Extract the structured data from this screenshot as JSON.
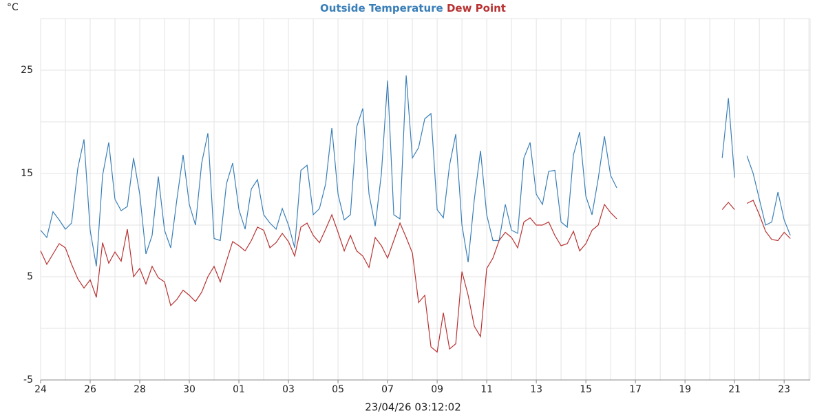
{
  "chart_data": {
    "type": "line",
    "unit": "°C",
    "footer": "23/04/26 03:12:02",
    "grid": true,
    "x": [
      0,
      0.25,
      0.5,
      0.75,
      1,
      1.25,
      1.5,
      1.75,
      2,
      2.25,
      2.5,
      2.75,
      3,
      3.25,
      3.5,
      3.75,
      4,
      4.25,
      4.5,
      4.75,
      5,
      5.25,
      5.5,
      5.75,
      6,
      6.25,
      6.5,
      6.75,
      7,
      7.25,
      7.5,
      7.75,
      8,
      8.25,
      8.5,
      8.75,
      9,
      9.25,
      9.5,
      9.75,
      10,
      10.25,
      10.5,
      10.75,
      11,
      11.25,
      11.5,
      11.75,
      12,
      12.25,
      12.5,
      12.75,
      13,
      13.25,
      13.5,
      13.75,
      14,
      14.25,
      14.5,
      14.75,
      15,
      15.25,
      15.5,
      15.75,
      16,
      16.25,
      16.5,
      16.75,
      17,
      17.25,
      17.5,
      17.75,
      18,
      18.25,
      18.5,
      18.75,
      19,
      19.25,
      19.5,
      19.75,
      20,
      20.25,
      20.5,
      20.75,
      21,
      21.25,
      21.5,
      21.75,
      22,
      22.25,
      22.5,
      22.75,
      23,
      23.25,
      23.5,
      23.75,
      24,
      24.25,
      24.5,
      24.75,
      25,
      25.25,
      25.5,
      25.75,
      26,
      26.25,
      26.5,
      26.75,
      27,
      27.25,
      27.5,
      27.75,
      28,
      28.25,
      28.5,
      28.75,
      29,
      29.25,
      29.5,
      29.75,
      30,
      30.25
    ],
    "series": [
      {
        "name": "Outside Temperature",
        "color": "#3a7fb8",
        "values": [
          9.5,
          8.8,
          11.3,
          10.5,
          9.6,
          10.2,
          15.5,
          18.3,
          9.5,
          6.0,
          14.8,
          18.0,
          12.5,
          11.4,
          11.8,
          16.5,
          13,
          7.2,
          9,
          14.7,
          9.5,
          7.8,
          12.5,
          16.8,
          12,
          10,
          16,
          18.9,
          8.7,
          8.5,
          14,
          16,
          11.5,
          9.6,
          13.5,
          14.4,
          11,
          10.2,
          9.6,
          11.6,
          10,
          7.8,
          15.3,
          15.8,
          11,
          11.6,
          14,
          19.4,
          13,
          10.5,
          11,
          19.5,
          21.3,
          13,
          9.9,
          15,
          24,
          11,
          10.6,
          24.5,
          16.5,
          17.5,
          20.3,
          20.8,
          11.5,
          10.7,
          15.8,
          18.8,
          10,
          6.4,
          12.5,
          17.2,
          11,
          8.5,
          8.5,
          12,
          9.5,
          9.2,
          16.5,
          18,
          13,
          12,
          15.2,
          15.3,
          10.3,
          9.8,
          16.8,
          19,
          12.8,
          11,
          14.5,
          18.6,
          14.8,
          13.6,
          null,
          null,
          null,
          null,
          null,
          null,
          null,
          null,
          null,
          null,
          null,
          null,
          null,
          null,
          null,
          null,
          16.5,
          22.3,
          14.6,
          null,
          16.7,
          15,
          12.5,
          10,
          10.3,
          13.2,
          10.5,
          9
        ]
      },
      {
        "name": "Dew Point",
        "color": "#b83232",
        "values": [
          7.5,
          6.2,
          7.2,
          8.2,
          7.8,
          6.2,
          4.8,
          3.9,
          4.7,
          3.0,
          8.3,
          6.3,
          7.4,
          6.5,
          9.6,
          5.0,
          5.8,
          4.3,
          6.0,
          4.9,
          4.5,
          2.2,
          2.8,
          3.7,
          3.2,
          2.6,
          3.5,
          5.0,
          6,
          4.5,
          6.5,
          8.4,
          8,
          7.5,
          8.5,
          9.8,
          9.5,
          7.8,
          8.3,
          9.2,
          8.4,
          7.0,
          9.8,
          10.2,
          9,
          8.3,
          9.6,
          11,
          9.3,
          7.5,
          9,
          7.5,
          7,
          5.9,
          8.8,
          8,
          6.8,
          8.5,
          10.2,
          8.8,
          7.3,
          2.5,
          3.2,
          -1.8,
          -2.3,
          1.5,
          -2.0,
          -1.5,
          5.5,
          3.2,
          0.2,
          -0.8,
          5.8,
          6.8,
          8.5,
          9.3,
          8.8,
          7.8,
          10.3,
          10.7,
          10,
          10,
          10.3,
          9,
          8,
          8.2,
          9.4,
          7.5,
          8.2,
          9.5,
          10,
          12,
          11.2,
          10.6,
          null,
          null,
          null,
          null,
          null,
          null,
          null,
          null,
          null,
          null,
          null,
          null,
          null,
          null,
          null,
          null,
          11.5,
          12.2,
          11.5,
          null,
          12.1,
          12.4,
          11,
          9.4,
          8.6,
          8.5,
          9.3,
          8.7
        ]
      }
    ],
    "xlim": [
      0,
      31.05
    ],
    "ylim": [
      -5,
      30
    ],
    "yticks": [
      -5,
      5,
      15,
      25
    ],
    "xticks": [
      {
        "value": 0,
        "label": "24"
      },
      {
        "value": 2,
        "label": "26"
      },
      {
        "value": 4,
        "label": "28"
      },
      {
        "value": 6,
        "label": "30"
      },
      {
        "value": 8,
        "label": "01"
      },
      {
        "value": 10,
        "label": "03"
      },
      {
        "value": 12,
        "label": "05"
      },
      {
        "value": 14,
        "label": "07"
      },
      {
        "value": 16,
        "label": "09"
      },
      {
        "value": 18,
        "label": "11"
      },
      {
        "value": 20,
        "label": "13"
      },
      {
        "value": 22,
        "label": "15"
      },
      {
        "value": 24,
        "label": "17"
      },
      {
        "value": 26,
        "label": "19"
      },
      {
        "value": 28,
        "label": "21"
      },
      {
        "value": 30,
        "label": "23"
      }
    ]
  }
}
